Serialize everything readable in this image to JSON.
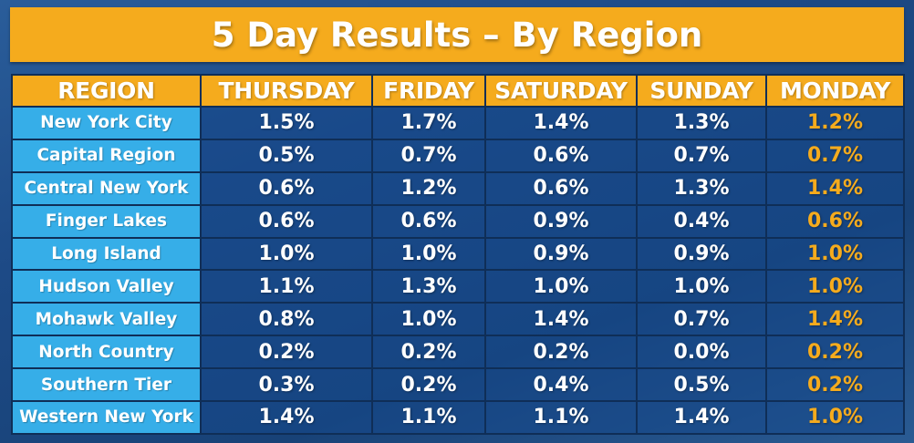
{
  "title": "5 Day Results – By Region",
  "headers": [
    "REGION",
    "THURSDAY",
    "FRIDAY",
    "SATURDAY",
    "SUNDAY",
    "MONDAY"
  ],
  "rows": [
    {
      "region": "New York City",
      "values": [
        "1.5%",
        "1.7%",
        "1.4%",
        "1.3%",
        "1.2%"
      ]
    },
    {
      "region": "Capital Region",
      "values": [
        "0.5%",
        "0.7%",
        "0.6%",
        "0.7%",
        "0.7%"
      ]
    },
    {
      "region": "Central New York",
      "values": [
        "0.6%",
        "1.2%",
        "0.6%",
        "1.3%",
        "1.4%"
      ]
    },
    {
      "region": "Finger Lakes",
      "values": [
        "0.6%",
        "0.6%",
        "0.9%",
        "0.4%",
        "0.6%"
      ]
    },
    {
      "region": "Long Island",
      "values": [
        "1.0%",
        "1.0%",
        "0.9%",
        "0.9%",
        "1.0%"
      ]
    },
    {
      "region": "Hudson Valley",
      "values": [
        "1.1%",
        "1.3%",
        "1.0%",
        "1.0%",
        "1.0%"
      ]
    },
    {
      "region": "Mohawk Valley",
      "values": [
        "0.8%",
        "1.0%",
        "1.4%",
        "0.7%",
        "1.4%"
      ]
    },
    {
      "region": "North Country",
      "values": [
        "0.2%",
        "0.2%",
        "0.2%",
        "0.0%",
        "0.2%"
      ]
    },
    {
      "region": "Southern Tier",
      "values": [
        "0.3%",
        "0.2%",
        "0.4%",
        "0.5%",
        "0.2%"
      ]
    },
    {
      "region": "Western New York",
      "values": [
        "1.4%",
        "1.1%",
        "1.1%",
        "1.4%",
        "1.0%"
      ]
    }
  ],
  "colors": {
    "header_bg": "#f5ab1d",
    "region_bg": "#36aee8",
    "monday_text": "#f5ab1d",
    "value_text": "#ffffff"
  }
}
